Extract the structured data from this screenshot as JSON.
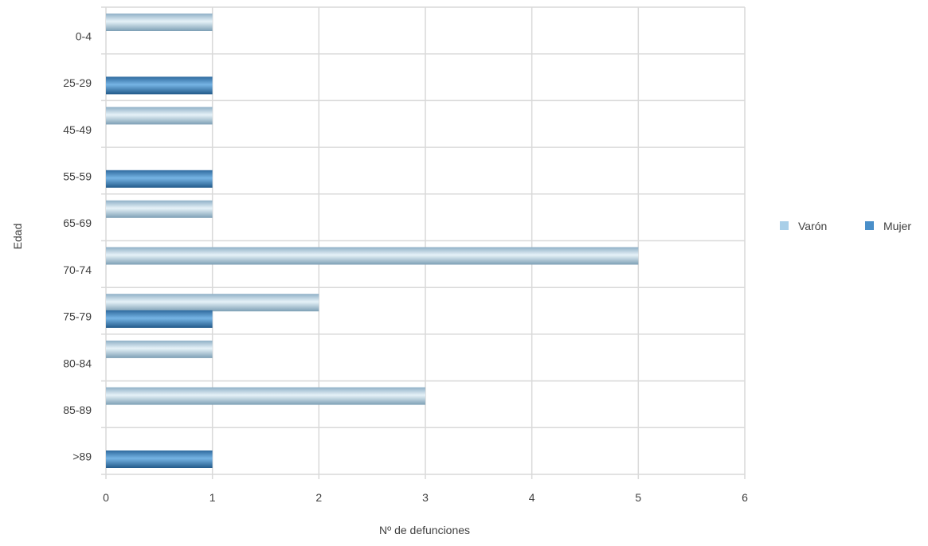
{
  "chart_data": {
    "type": "bar",
    "orientation": "horizontal",
    "categories": [
      "0-4",
      "25-29",
      "45-49",
      "55-59",
      "65-69",
      "70-74",
      "75-79",
      "80-84",
      "85-89",
      ">89"
    ],
    "series": [
      {
        "name": "Varón",
        "values": [
          1,
          0,
          1,
          0,
          1,
          5,
          2,
          1,
          3,
          0
        ],
        "color": "#a9cfe8"
      },
      {
        "name": "Mujer",
        "values": [
          0,
          1,
          0,
          1,
          0,
          0,
          1,
          0,
          0,
          1
        ],
        "color": "#4a8fc9"
      }
    ],
    "x_ticks": [
      "0",
      "1",
      "2",
      "3",
      "4",
      "5",
      "6"
    ],
    "xlim": [
      0,
      6
    ],
    "xlabel": "Nº de defunciones",
    "ylabel": "Edad",
    "grid": true,
    "legend_position": "right"
  }
}
